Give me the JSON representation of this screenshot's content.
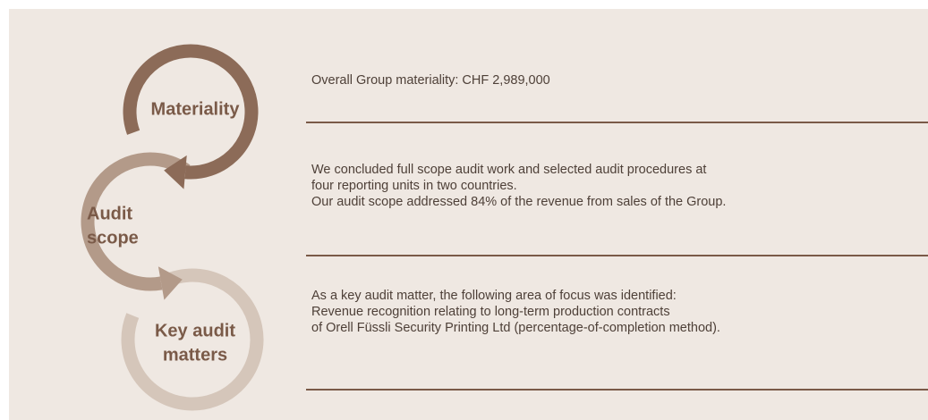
{
  "diagram": {
    "steps": [
      {
        "label": [
          "Materiality"
        ],
        "text": [
          "Overall Group materiality: CHF 2,989,000"
        ]
      },
      {
        "label": [
          "Audit",
          "scope"
        ],
        "text": [
          "We concluded full scope audit work and selected audit procedures at",
          "four reporting units in two countries.",
          "Our audit scope addressed 84% of the revenue from sales of the Group."
        ]
      },
      {
        "label": [
          "Key audit",
          "matters"
        ],
        "text": [
          "As a key audit matter, the following area of focus was identified:",
          "Revenue recognition relating to long-term production contracts",
          "of Orell Füssli Security Printing Ltd (percentage-of-completion method)."
        ]
      }
    ]
  }
}
